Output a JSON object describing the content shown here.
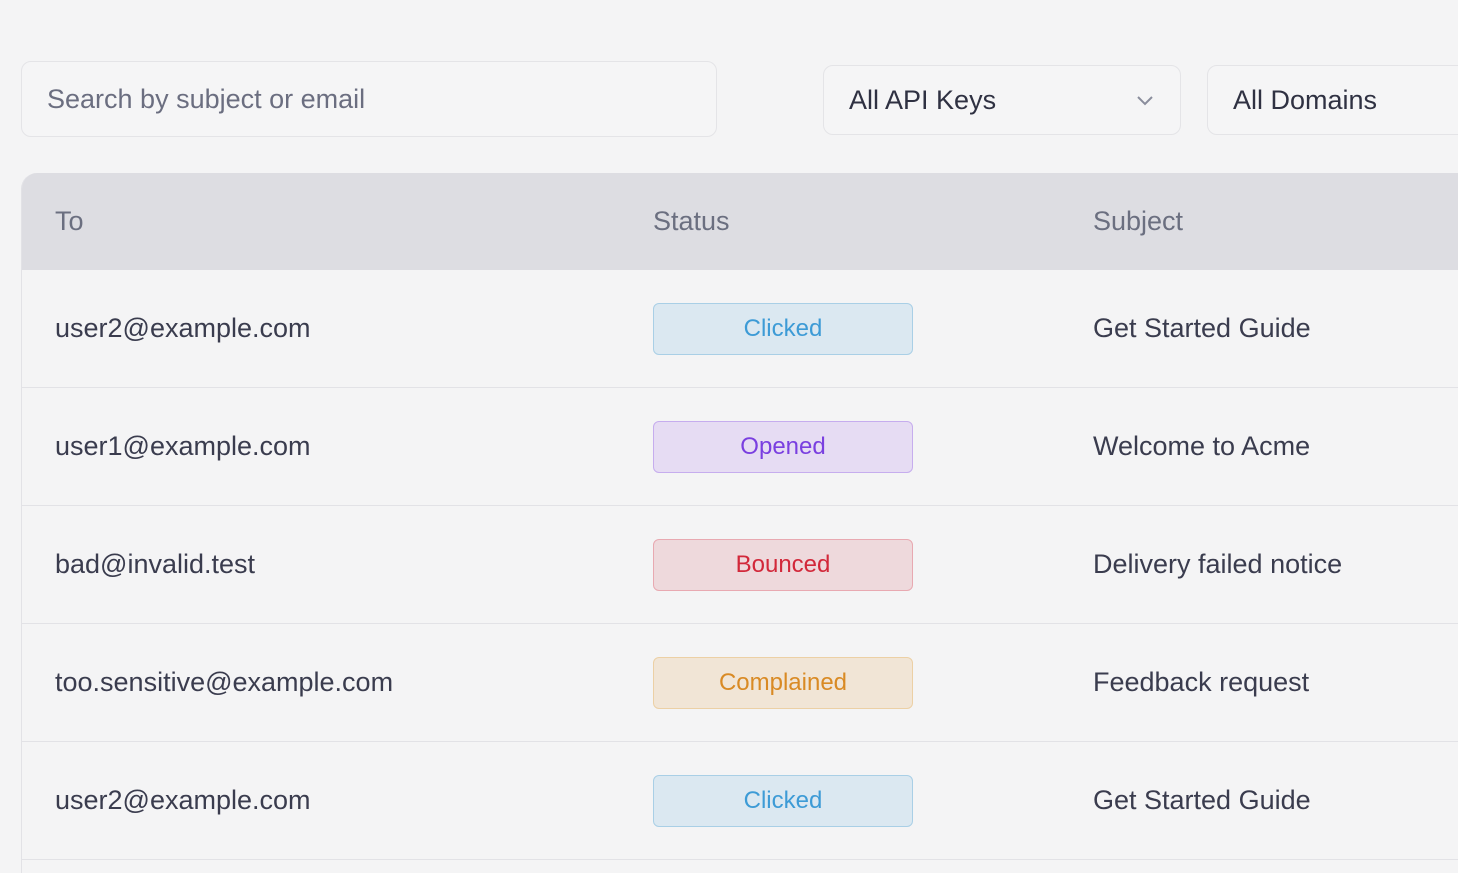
{
  "filters": {
    "search_placeholder": "Search by subject or email",
    "api_keys": "All API Keys",
    "domains": "All Domains"
  },
  "table": {
    "headers": [
      "To",
      "Status",
      "Subject"
    ],
    "rows": [
      {
        "to": "user2@example.com",
        "status": "Clicked",
        "subject": "Get Started Guide"
      },
      {
        "to": "user1@example.com",
        "status": "Opened",
        "subject": "Welcome to Acme"
      },
      {
        "to": "bad@invalid.test",
        "status": "Bounced",
        "subject": "Delivery failed notice"
      },
      {
        "to": "too.sensitive@example.com",
        "status": "Complained",
        "subject": "Feedback request"
      },
      {
        "to": "user2@example.com",
        "status": "Clicked",
        "subject": "Get Started Guide"
      }
    ]
  },
  "status_colors": {
    "Clicked": "#3d9bd6",
    "Opened": "#7a3fe0",
    "Bounced": "#d2283a",
    "Complained": "#d98a24"
  }
}
